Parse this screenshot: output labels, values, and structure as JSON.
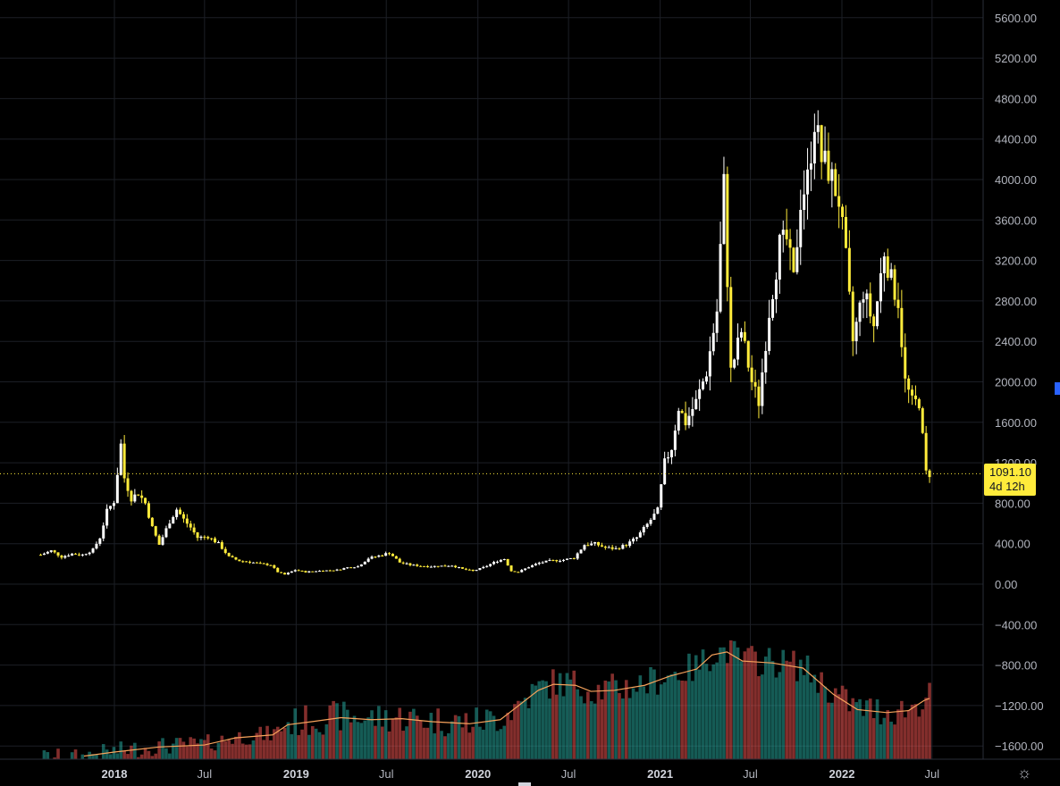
{
  "chart_data": {
    "type": "candlestick",
    "price_axis": {
      "ticks": [
        "5600.00",
        "5200.00",
        "4800.00",
        "4400.00",
        "4000.00",
        "3600.00",
        "3200.00",
        "2800.00",
        "2400.00",
        "2000.00",
        "1600.00",
        "1200.00",
        "800.00",
        "400.00",
        "0.00",
        "−400.00",
        "−800.00",
        "−1200.00",
        "−1600.00"
      ],
      "tick_values": [
        5600,
        5200,
        4800,
        4400,
        4000,
        3600,
        3200,
        2800,
        2400,
        2000,
        1600,
        1200,
        800,
        400,
        0,
        -400,
        -800,
        -1200,
        -1600
      ],
      "ylim": [
        -1750,
        5750
      ]
    },
    "time_axis": {
      "labels": [
        {
          "text": "2018",
          "date": "2018-01-01",
          "year": true
        },
        {
          "text": "Jul",
          "date": "2018-07-01",
          "year": false
        },
        {
          "text": "2019",
          "date": "2019-01-01",
          "year": true
        },
        {
          "text": "Jul",
          "date": "2019-07-01",
          "year": false
        },
        {
          "text": "2020",
          "date": "2020-01-01",
          "year": true
        },
        {
          "text": "Jul",
          "date": "2020-07-01",
          "year": false
        },
        {
          "text": "2021",
          "date": "2021-01-01",
          "year": true
        },
        {
          "text": "Jul",
          "date": "2021-07-01",
          "year": false
        },
        {
          "text": "2022",
          "date": "2022-01-01",
          "year": true
        },
        {
          "text": "Jul",
          "date": "2022-07-01",
          "year": false
        }
      ]
    },
    "last_price": {
      "value_label": "1091.10",
      "countdown": "4d 12h",
      "value": 1091.1
    },
    "colors": {
      "up_candle": "#ffffff",
      "down_candle": "#ffeb3b",
      "up_volume": "#26a69a",
      "down_volume": "#ef5350",
      "volume_ma": "#f7a35c",
      "price_line": "#ffeb3b",
      "grid": "#1c1f26",
      "background": "#000000"
    },
    "close_series": [
      [
        "2017-08-06",
        290
      ],
      [
        "2017-08-27",
        330
      ],
      [
        "2017-09-17",
        270
      ],
      [
        "2017-10-08",
        300
      ],
      [
        "2017-10-29",
        290
      ],
      [
        "2017-11-19",
        340
      ],
      [
        "2017-12-03",
        460
      ],
      [
        "2017-12-17",
        720
      ],
      [
        "2017-12-31",
        820
      ],
      [
        "2018-01-07",
        1100
      ],
      [
        "2018-01-14",
        1380
      ],
      [
        "2018-01-21",
        1050
      ],
      [
        "2018-02-04",
        850
      ],
      [
        "2018-02-18",
        900
      ],
      [
        "2018-03-04",
        800
      ],
      [
        "2018-03-18",
        560
      ],
      [
        "2018-04-01",
        390
      ],
      [
        "2018-04-22",
        620
      ],
      [
        "2018-05-06",
        740
      ],
      [
        "2018-05-20",
        640
      ],
      [
        "2018-06-03",
        560
      ],
      [
        "2018-06-17",
        460
      ],
      [
        "2018-07-08",
        470
      ],
      [
        "2018-07-29",
        400
      ],
      [
        "2018-08-19",
        270
      ],
      [
        "2018-09-09",
        230
      ],
      [
        "2018-09-30",
        220
      ],
      [
        "2018-10-21",
        200
      ],
      [
        "2018-11-11",
        190
      ],
      [
        "2018-11-25",
        120
      ],
      [
        "2018-12-09",
        95
      ],
      [
        "2018-12-30",
        140
      ],
      [
        "2019-01-20",
        120
      ],
      [
        "2019-02-10",
        130
      ],
      [
        "2019-03-03",
        135
      ],
      [
        "2019-03-24",
        140
      ],
      [
        "2019-04-14",
        165
      ],
      [
        "2019-05-05",
        175
      ],
      [
        "2019-05-26",
        255
      ],
      [
        "2019-06-16",
        280
      ],
      [
        "2019-07-07",
        310
      ],
      [
        "2019-07-28",
        215
      ],
      [
        "2019-08-18",
        190
      ],
      [
        "2019-09-08",
        180
      ],
      [
        "2019-09-29",
        175
      ],
      [
        "2019-10-20",
        180
      ],
      [
        "2019-11-10",
        185
      ],
      [
        "2019-12-01",
        150
      ],
      [
        "2019-12-22",
        130
      ],
      [
        "2020-01-12",
        165
      ],
      [
        "2020-02-09",
        230
      ],
      [
        "2020-02-23",
        250
      ],
      [
        "2020-03-08",
        130
      ],
      [
        "2020-03-22",
        120
      ],
      [
        "2020-04-12",
        170
      ],
      [
        "2020-05-03",
        210
      ],
      [
        "2020-05-24",
        230
      ],
      [
        "2020-06-21",
        240
      ],
      [
        "2020-07-12",
        260
      ],
      [
        "2020-08-02",
        390
      ],
      [
        "2020-08-23",
        400
      ],
      [
        "2020-09-13",
        360
      ],
      [
        "2020-10-04",
        350
      ],
      [
        "2020-10-25",
        390
      ],
      [
        "2020-11-15",
        460
      ],
      [
        "2020-12-06",
        590
      ],
      [
        "2020-12-27",
        730
      ],
      [
        "2021-01-10",
        1200
      ],
      [
        "2021-01-24",
        1350
      ],
      [
        "2021-02-07",
        1750
      ],
      [
        "2021-02-21",
        1600
      ],
      [
        "2021-03-14",
        1800
      ],
      [
        "2021-04-04",
        2100
      ],
      [
        "2021-04-25",
        2700
      ],
      [
        "2021-05-09",
        3950
      ],
      [
        "2021-05-23",
        2100
      ],
      [
        "2021-06-13",
        2500
      ],
      [
        "2021-07-04",
        2000
      ],
      [
        "2021-07-18",
        1800
      ],
      [
        "2021-08-08",
        2700
      ],
      [
        "2021-08-29",
        3350
      ],
      [
        "2021-09-12",
        3400
      ],
      [
        "2021-09-26",
        3000
      ],
      [
        "2021-10-10",
        3800
      ],
      [
        "2021-10-24",
        4000
      ],
      [
        "2021-11-07",
        4600
      ],
      [
        "2021-11-21",
        4200
      ],
      [
        "2021-12-05",
        4100
      ],
      [
        "2021-12-26",
        3800
      ],
      [
        "2022-01-09",
        3200
      ],
      [
        "2022-01-23",
        2400
      ],
      [
        "2022-02-13",
        2900
      ],
      [
        "2022-03-06",
        2550
      ],
      [
        "2022-03-27",
        3300
      ],
      [
        "2022-04-10",
        3000
      ],
      [
        "2022-04-24",
        2800
      ],
      [
        "2022-05-08",
        2000
      ],
      [
        "2022-05-22",
        1800
      ],
      [
        "2022-06-05",
        1800
      ],
      [
        "2022-06-19",
        1100
      ],
      [
        "2022-06-26",
        1091
      ]
    ],
    "volume_ma_series": [
      [
        "2017-11-01",
        -1700
      ],
      [
        "2018-01-01",
        -1660
      ],
      [
        "2018-04-01",
        -1610
      ],
      [
        "2018-07-01",
        -1590
      ],
      [
        "2018-09-01",
        -1520
      ],
      [
        "2018-11-15",
        -1490
      ],
      [
        "2018-12-15",
        -1390
      ],
      [
        "2019-02-01",
        -1360
      ],
      [
        "2019-04-01",
        -1320
      ],
      [
        "2019-06-01",
        -1340
      ],
      [
        "2019-08-01",
        -1330
      ],
      [
        "2019-10-01",
        -1360
      ],
      [
        "2019-12-15",
        -1380
      ],
      [
        "2020-02-15",
        -1340
      ],
      [
        "2020-03-15",
        -1230
      ],
      [
        "2020-05-01",
        -1050
      ],
      [
        "2020-06-01",
        -990
      ],
      [
        "2020-07-15",
        -1000
      ],
      [
        "2020-08-15",
        -1060
      ],
      [
        "2020-10-01",
        -1050
      ],
      [
        "2020-12-01",
        -1000
      ],
      [
        "2021-01-20",
        -910
      ],
      [
        "2021-03-15",
        -840
      ],
      [
        "2021-04-15",
        -700
      ],
      [
        "2021-05-15",
        -670
      ],
      [
        "2021-06-15",
        -760
      ],
      [
        "2021-08-15",
        -780
      ],
      [
        "2021-10-15",
        -830
      ],
      [
        "2021-12-15",
        -1090
      ],
      [
        "2022-02-01",
        -1240
      ],
      [
        "2022-04-01",
        -1270
      ],
      [
        "2022-05-15",
        -1250
      ],
      [
        "2022-06-15",
        -1150
      ],
      [
        "2022-06-26",
        -1130
      ]
    ]
  }
}
